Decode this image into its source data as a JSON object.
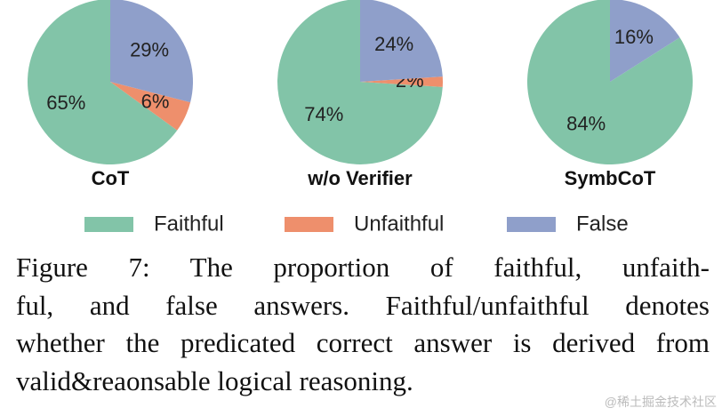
{
  "chart_data": [
    {
      "type": "pie",
      "title": "CoT",
      "categories": [
        "Faithful",
        "Unfaithful",
        "False"
      ],
      "values": [
        65,
        6,
        29
      ],
      "value_labels": [
        "65%",
        "6%",
        "29%"
      ],
      "colors": [
        "#82c4a8",
        "#ee8f6c",
        "#8f9fca"
      ]
    },
    {
      "type": "pie",
      "title": "w/o Verifier",
      "categories": [
        "Faithful",
        "Unfaithful",
        "False"
      ],
      "values": [
        74,
        2,
        24
      ],
      "value_labels": [
        "74%",
        "2%",
        "24%"
      ],
      "colors": [
        "#82c4a8",
        "#ee8f6c",
        "#8f9fca"
      ]
    },
    {
      "type": "pie",
      "title": "SymbCoT",
      "categories": [
        "Faithful",
        "Unfaithful",
        "False"
      ],
      "values": [
        84,
        0,
        16
      ],
      "value_labels": [
        "84%",
        null,
        "16%"
      ],
      "colors": [
        "#82c4a8",
        "#ee8f6c",
        "#8f9fca"
      ]
    }
  ],
  "caption": [
    "Figure 7:  The proportion of faithful, unfaith-",
    "ful, and false answers.  Faithful/unfaithful denotes",
    "whether the predicated correct answer is derived from",
    "valid&reaonsable logical reasoning."
  ],
  "watermark": "@稀土掘金技术社区"
}
